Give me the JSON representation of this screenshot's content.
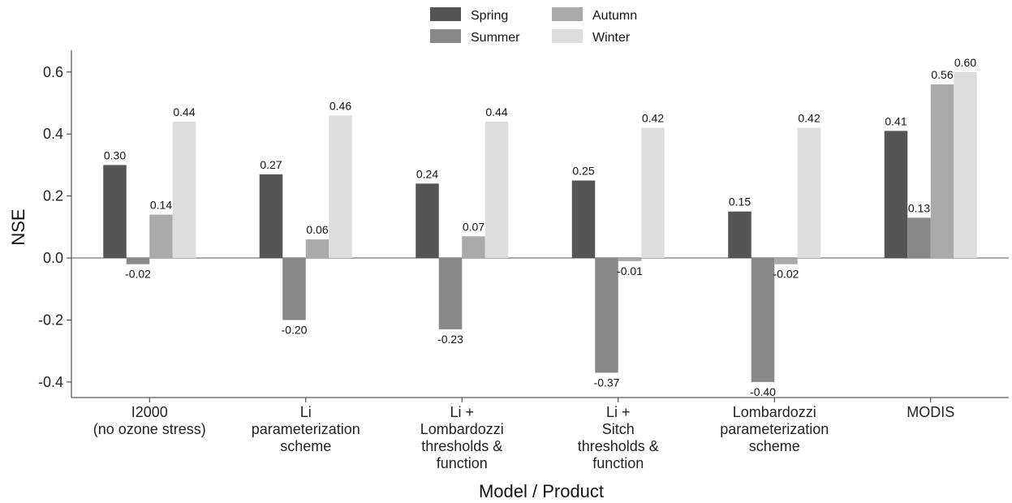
{
  "chart_data": {
    "type": "bar",
    "xlabel": "Model / Product",
    "ylabel": "NSE",
    "ylim": [
      -0.45,
      0.67
    ],
    "yticks": [
      "-0.4",
      "-0.2",
      "0.0",
      "0.2",
      "0.4",
      "0.6"
    ],
    "ytick_values": [
      -0.4,
      -0.2,
      0.0,
      0.2,
      0.4,
      0.6
    ],
    "categories": [
      [
        "I2000",
        "(no ozone stress)"
      ],
      [
        "Li",
        "parameterization",
        "scheme"
      ],
      [
        "Li +",
        "Lombardozzi",
        "thresholds &",
        "function"
      ],
      [
        "Li +",
        "Sitch",
        "thresholds &",
        "function"
      ],
      [
        "Lombardozzi",
        "parameterization",
        "scheme"
      ],
      [
        "MODIS"
      ]
    ],
    "series": [
      {
        "name": "Spring",
        "color": "#555555",
        "values": [
          0.3,
          0.27,
          0.24,
          0.25,
          0.15,
          0.41
        ],
        "labels": [
          "0.30",
          "0.27",
          "0.24",
          "0.25",
          "0.15",
          "0.41"
        ]
      },
      {
        "name": "Summer",
        "color": "#888888",
        "values": [
          -0.02,
          -0.2,
          -0.23,
          -0.37,
          -0.4,
          0.13
        ],
        "labels": [
          "-0.02",
          "-0.20",
          "-0.23",
          "-0.37",
          "-0.40",
          "0.13"
        ]
      },
      {
        "name": "Autumn",
        "color": "#aaaaaa",
        "values": [
          0.14,
          0.06,
          0.07,
          -0.01,
          -0.02,
          0.56
        ],
        "labels": [
          "0.14",
          "0.06",
          "0.07",
          "-0.01",
          "-0.02",
          "0.56"
        ]
      },
      {
        "name": "Winter",
        "color": "#dddddd",
        "values": [
          0.44,
          0.46,
          0.44,
          0.42,
          0.42,
          0.6
        ],
        "labels": [
          "0.44",
          "0.46",
          "0.44",
          "0.42",
          "0.42",
          "0.60"
        ]
      }
    ],
    "legend_position": "top",
    "grid": false
  }
}
